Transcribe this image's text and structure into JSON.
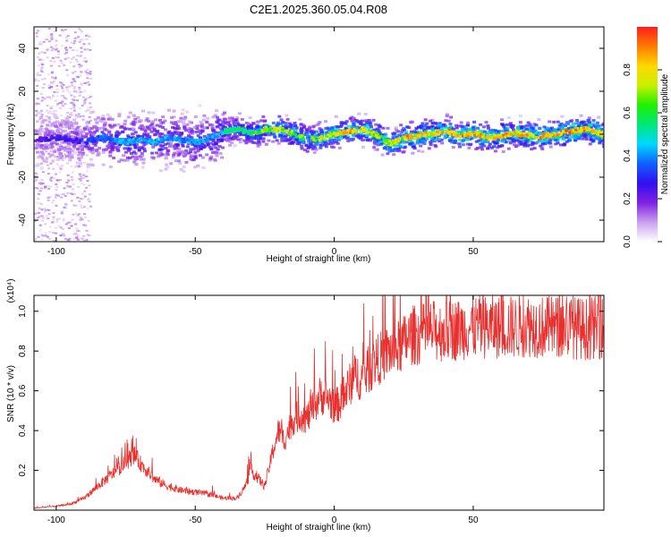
{
  "title": "C2E1.2025.360.05.04.R08",
  "chart_data": [
    {
      "type": "heatmap",
      "name": "spectrogram",
      "xlabel": "Height of straight line (km)",
      "ylabel": "Frequency (Hz)",
      "xlim": [
        -108,
        97
      ],
      "ylim": [
        -50,
        50
      ],
      "x_ticks": [
        -100,
        -50,
        0,
        50
      ],
      "x_tick_labels": [
        "-100",
        "-50",
        "0",
        "50"
      ],
      "y_ticks": [
        -40,
        -20,
        0,
        20,
        40
      ],
      "y_tick_labels": [
        "-40",
        "-20",
        "0",
        "20",
        "40"
      ],
      "colorbar": {
        "label": "Normalized spectral amplitude",
        "range": [
          0.0,
          1.0
        ],
        "ticks": [
          0.0,
          0.2,
          0.4,
          0.6,
          0.8
        ],
        "tick_labels": [
          "0.0",
          "0.2",
          "0.4",
          "0.6",
          "0.8"
        ],
        "colors": [
          "#ffffff",
          "#c8a0f0",
          "#8020e0",
          "#3010f0",
          "#1060ff",
          "#00d8ff",
          "#00e878",
          "#20f000",
          "#c8f000",
          "#ffd800",
          "#ff7a00",
          "#ff1e1e"
        ]
      },
      "ridge": {
        "description": "dominant frequency track",
        "x": [
          -108,
          -100,
          -95,
          -90,
          -85,
          -80,
          -75,
          -70,
          -65,
          -60,
          -55,
          -50,
          -45,
          -40,
          -35,
          -30,
          -25,
          -20,
          -15,
          -10,
          -5,
          0,
          5,
          10,
          15,
          20,
          25,
          30,
          35,
          40,
          45,
          50,
          55,
          60,
          65,
          70,
          75,
          80,
          85,
          90,
          95,
          97
        ],
        "freq": [
          -2,
          -1,
          -2,
          -3,
          -1,
          -2,
          -3,
          -2,
          -3,
          -1,
          -2,
          -3,
          -1,
          2,
          3,
          1,
          3,
          3,
          1,
          -2,
          -1,
          1,
          2,
          3,
          0,
          -4,
          -1,
          0,
          1,
          2,
          0,
          1,
          -1,
          0,
          1,
          0,
          0,
          1,
          2,
          3,
          1,
          0
        ],
        "amplitude": [
          0.25,
          0.3,
          0.3,
          0.35,
          0.4,
          0.45,
          0.5,
          0.45,
          0.5,
          0.45,
          0.45,
          0.5,
          0.45,
          0.55,
          0.6,
          0.65,
          0.8,
          0.85,
          0.75,
          0.75,
          0.8,
          0.85,
          0.95,
          0.85,
          0.85,
          0.85,
          0.95,
          0.95,
          0.9,
          0.95,
          0.95,
          0.95,
          0.9,
          0.95,
          0.9,
          0.95,
          0.95,
          0.95,
          1.0,
          0.95,
          0.9,
          0.9
        ]
      }
    },
    {
      "type": "line",
      "name": "snr",
      "xlabel": "Height of straight line (km)",
      "ylabel": "SNR (10 * v/v)",
      "y_scale_label": "(x10⁴)",
      "xlim": [
        -108,
        97
      ],
      "ylim": [
        0,
        1.08
      ],
      "x_ticks": [
        -100,
        -50,
        0,
        50
      ],
      "x_tick_labels": [
        "-100",
        "-50",
        "0",
        "50"
      ],
      "y_ticks": [
        0.2,
        0.4,
        0.6,
        0.8,
        1.0
      ],
      "y_tick_labels": [
        "0.2",
        "0.4",
        "0.6",
        "0.8",
        "1.0"
      ],
      "color": "#e8302e",
      "series": [
        {
          "name": "SNR envelope",
          "x": [
            -108,
            -100,
            -95,
            -90,
            -85,
            -80,
            -75,
            -72,
            -70,
            -65,
            -60,
            -55,
            -50,
            -45,
            -40,
            -35,
            -32,
            -30,
            -28,
            -25,
            -22,
            -20,
            -18,
            -15,
            -12,
            -10,
            -8,
            -5,
            -2,
            0,
            3,
            5,
            8,
            10,
            12,
            15,
            18,
            20,
            22,
            25,
            28,
            30,
            35,
            40,
            45,
            50,
            55,
            60,
            65,
            70,
            75,
            80,
            85,
            90,
            95,
            97
          ],
          "y": [
            0.01,
            0.02,
            0.03,
            0.06,
            0.12,
            0.18,
            0.24,
            0.28,
            0.24,
            0.16,
            0.12,
            0.1,
            0.09,
            0.08,
            0.06,
            0.06,
            0.12,
            0.2,
            0.17,
            0.12,
            0.3,
            0.4,
            0.35,
            0.45,
            0.48,
            0.46,
            0.5,
            0.58,
            0.56,
            0.52,
            0.55,
            0.62,
            0.68,
            0.66,
            0.7,
            0.75,
            0.78,
            0.8,
            0.8,
            0.84,
            0.88,
            0.88,
            0.9,
            0.9,
            0.91,
            0.92,
            0.92,
            0.92,
            0.92,
            0.93,
            0.92,
            0.92,
            0.92,
            0.91,
            0.92,
            0.92
          ]
        }
      ]
    }
  ]
}
